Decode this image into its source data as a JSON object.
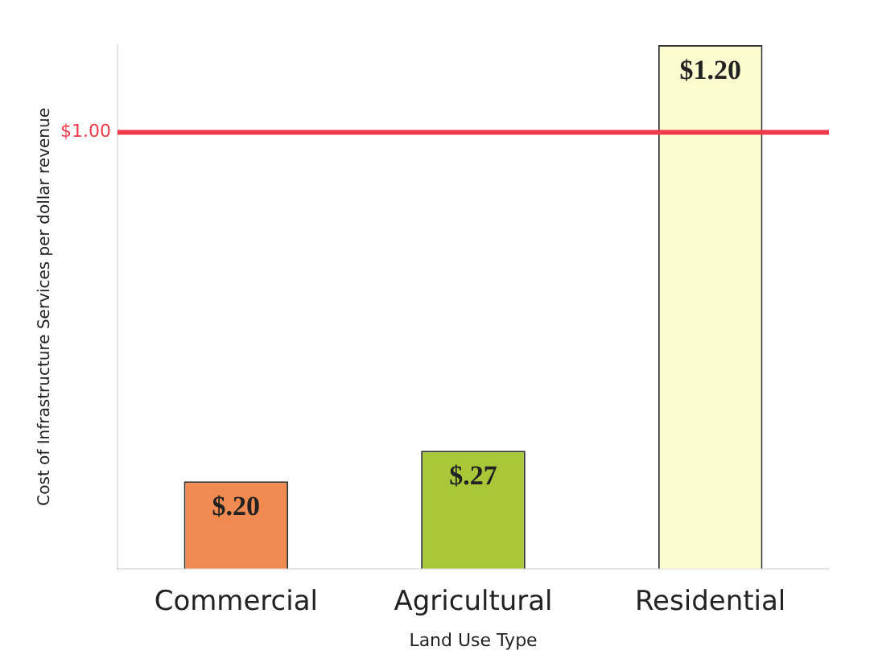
{
  "chart_data": {
    "type": "bar",
    "xlabel": "Land Use Type",
    "ylabel": "Cost of Infrastructure Services per dollar revenue",
    "categories": [
      "Commercial",
      "Agricultural",
      "Residential"
    ],
    "values": [
      0.2,
      0.27,
      1.2
    ],
    "colors": [
      "#f08a50",
      "#a8c83a",
      "#fdfbd0"
    ],
    "value_labels": [
      "$.20",
      "$.27",
      "$1.20"
    ],
    "ref_lines": [
      {
        "axis": "y",
        "value": 1.0,
        "label": "$1.00",
        "color": "#ee3a4a"
      }
    ],
    "tick_labels": "x",
    "grid": false,
    "legend": false
  }
}
